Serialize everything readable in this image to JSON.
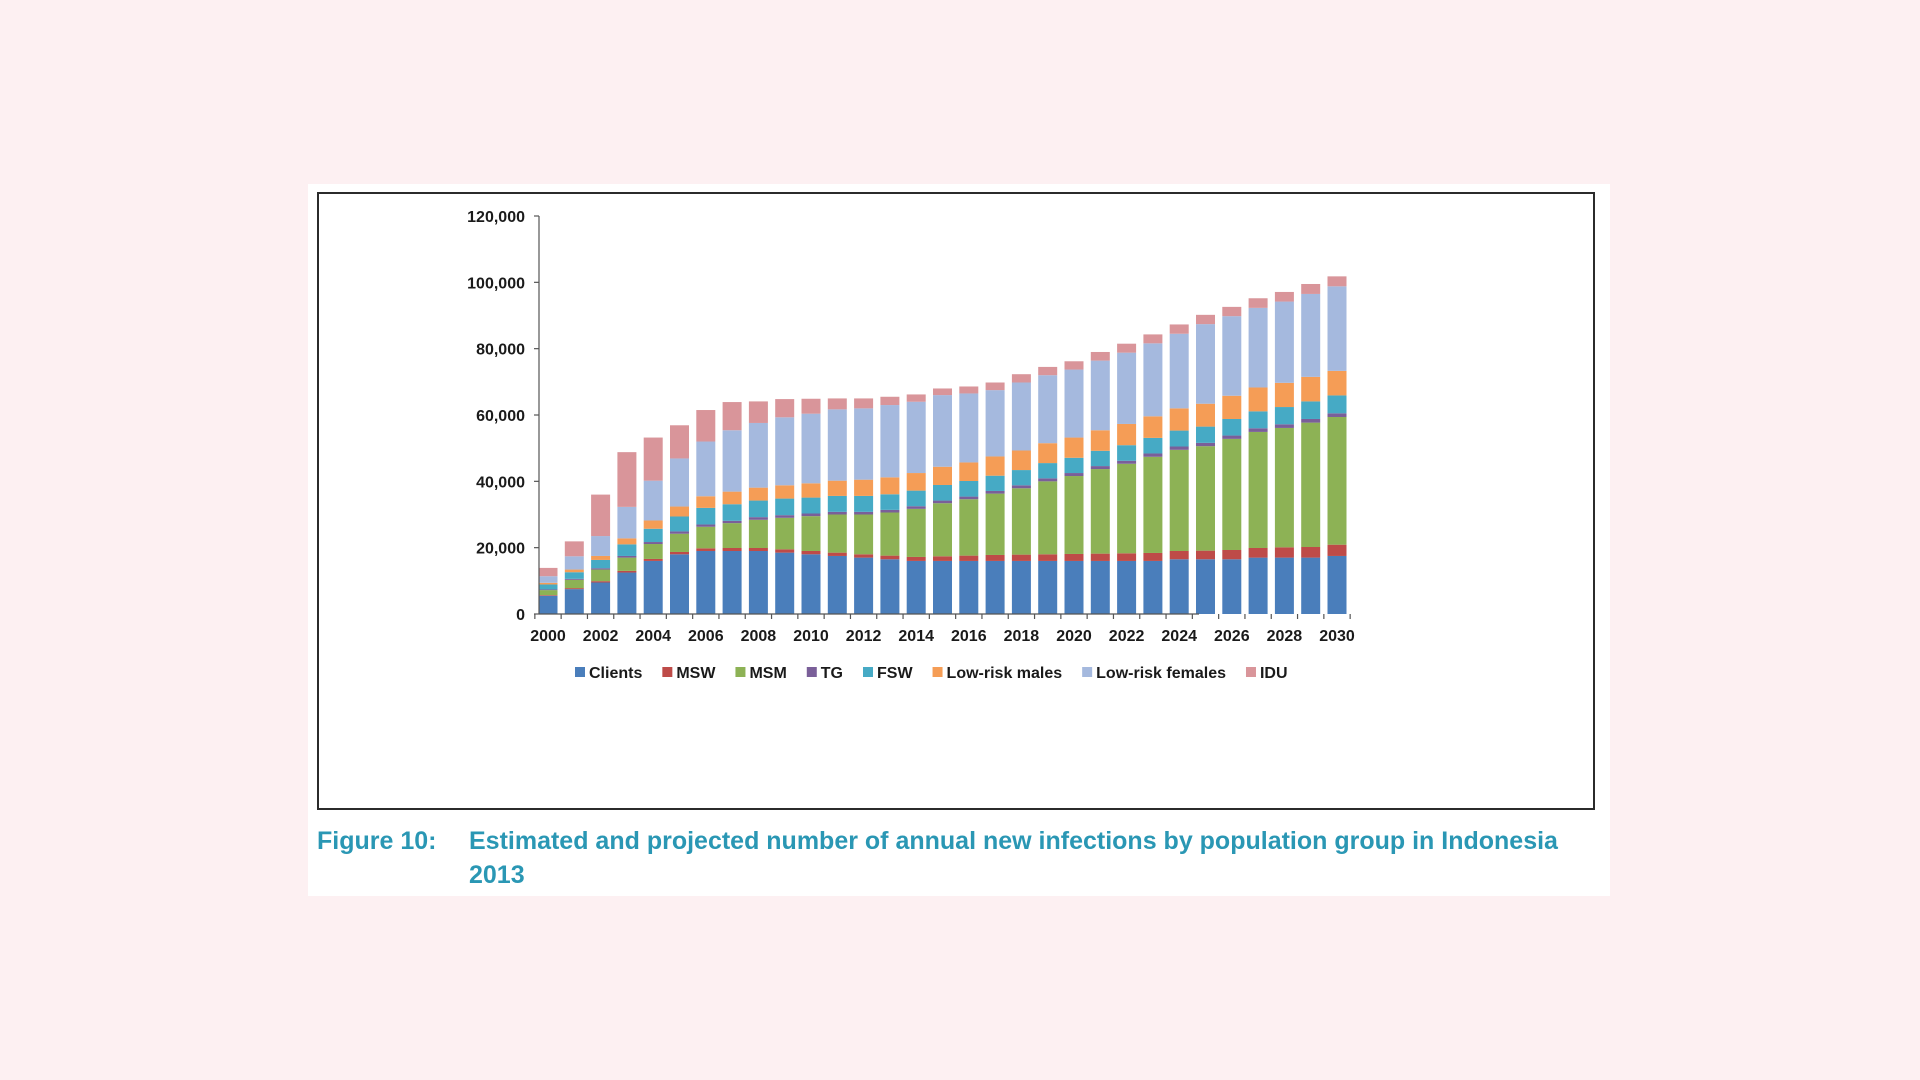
{
  "caption": {
    "label": "Figure 10:",
    "text": "Estimated and projected number of annual new infections by population group in Indonesia 2013"
  },
  "chart_data": {
    "type": "bar",
    "stacked": true,
    "title": "",
    "xlabel": "",
    "ylabel": "",
    "ylim": [
      0,
      120000
    ],
    "yticks": [
      "0",
      "20,000",
      "40,000",
      "60,000",
      "80,000",
      "100,000",
      "120,000"
    ],
    "xtick_labels": [
      "2000",
      "2002",
      "2004",
      "2006",
      "2008",
      "2010",
      "2012",
      "2014",
      "2016",
      "2018",
      "2020",
      "2022",
      "2024",
      "2026",
      "2028",
      "2030"
    ],
    "grid": false,
    "legend_position": "bottom",
    "categories": [
      2000,
      2001,
      2002,
      2003,
      2004,
      2005,
      2006,
      2007,
      2008,
      2009,
      2010,
      2011,
      2012,
      2013,
      2014,
      2015,
      2016,
      2017,
      2018,
      2019,
      2020,
      2021,
      2022,
      2023,
      2024,
      2025,
      2026,
      2027,
      2028,
      2029,
      2030
    ],
    "series": [
      {
        "name": "Clients",
        "color": "#4a7ebb",
        "values": [
          5500,
          7500,
          9500,
          12500,
          16000,
          18000,
          19000,
          19000,
          19000,
          18500,
          18000,
          17500,
          17000,
          16500,
          16000,
          16000,
          16000,
          16000,
          16000,
          16000,
          16000,
          16000,
          16000,
          16000,
          16500,
          16500,
          16500,
          17000,
          17000,
          17000,
          17500
        ]
      },
      {
        "name": "MSW",
        "color": "#be4b48",
        "values": [
          200,
          300,
          400,
          500,
          600,
          700,
          800,
          900,
          900,
          1000,
          1000,
          1000,
          1000,
          1100,
          1200,
          1400,
          1600,
          1800,
          1900,
          2000,
          2100,
          2200,
          2300,
          2400,
          2500,
          2600,
          2800,
          2900,
          3100,
          3200,
          3400
        ]
      },
      {
        "name": "MSM",
        "color": "#8db255",
        "values": [
          1500,
          2500,
          3500,
          4000,
          4500,
          5500,
          6500,
          7500,
          8500,
          9500,
          10500,
          11500,
          12000,
          13000,
          14500,
          16000,
          17000,
          18500,
          20000,
          22000,
          23500,
          25500,
          27000,
          29000,
          30500,
          31500,
          33500,
          35000,
          36000,
          37500,
          38500
        ]
      },
      {
        "name": "TG",
        "color": "#7a5f99",
        "values": [
          200,
          300,
          400,
          500,
          600,
          700,
          700,
          700,
          800,
          800,
          800,
          800,
          800,
          800,
          800,
          800,
          800,
          800,
          900,
          900,
          900,
          900,
          900,
          1000,
          1000,
          1000,
          1000,
          1100,
          1100,
          1100,
          1100
        ]
      },
      {
        "name": "FSW",
        "color": "#46aac5",
        "values": [
          1500,
          2000,
          2500,
          3500,
          4000,
          4500,
          5000,
          5000,
          5000,
          5000,
          4800,
          4800,
          4800,
          4700,
          4700,
          4700,
          4700,
          4600,
          4600,
          4600,
          4600,
          4600,
          4700,
          4700,
          4800,
          4900,
          5000,
          5100,
          5200,
          5300,
          5400
        ]
      },
      {
        "name": "Low-risk males",
        "color": "#f59d56",
        "values": [
          500,
          800,
          1200,
          1800,
          2500,
          3000,
          3500,
          3800,
          3900,
          4000,
          4300,
          4600,
          4900,
          5100,
          5300,
          5500,
          5600,
          5800,
          5900,
          6000,
          6100,
          6200,
          6400,
          6500,
          6700,
          6900,
          7000,
          7200,
          7300,
          7400,
          7400
        ]
      },
      {
        "name": "Low-risk females",
        "color": "#a5b9de",
        "values": [
          2000,
          4000,
          6000,
          9500,
          12000,
          14500,
          16500,
          18500,
          19500,
          20500,
          21000,
          21500,
          21500,
          21800,
          21500,
          21600,
          20800,
          20000,
          20500,
          20500,
          20500,
          21000,
          21500,
          22000,
          22500,
          24000,
          24000,
          24000,
          24500,
          25000,
          25500
        ]
      },
      {
        "name": "IDU",
        "color": "#d9959a",
        "values": [
          2500,
          4500,
          12500,
          16500,
          13000,
          10000,
          9500,
          8500,
          6500,
          5500,
          4500,
          3300,
          3000,
          2500,
          2200,
          2000,
          2100,
          2300,
          2500,
          2500,
          2500,
          2600,
          2700,
          2700,
          2800,
          2800,
          2800,
          2900,
          2900,
          3000,
          3000
        ]
      }
    ]
  }
}
